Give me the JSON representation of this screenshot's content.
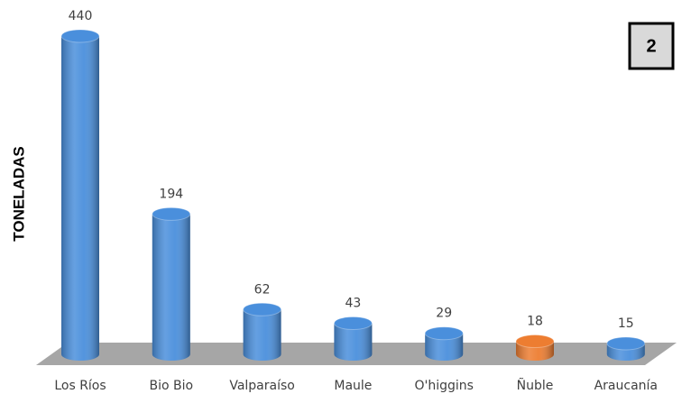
{
  "chart_data": {
    "type": "bar",
    "y_label": "TONELADAS",
    "annotation": "2",
    "categories": [
      "Los Ríos",
      "Bio Bio",
      "Valparaíso",
      "Maule",
      "O'higgins",
      "Ñuble",
      "Araucanía"
    ],
    "values": [
      440,
      194,
      62,
      43,
      29,
      18,
      15
    ],
    "colors": [
      "#4a8fdc",
      "#4a8fdc",
      "#4a8fdc",
      "#4a8fdc",
      "#4a8fdc",
      "#ed7d31",
      "#4a8fdc"
    ]
  }
}
